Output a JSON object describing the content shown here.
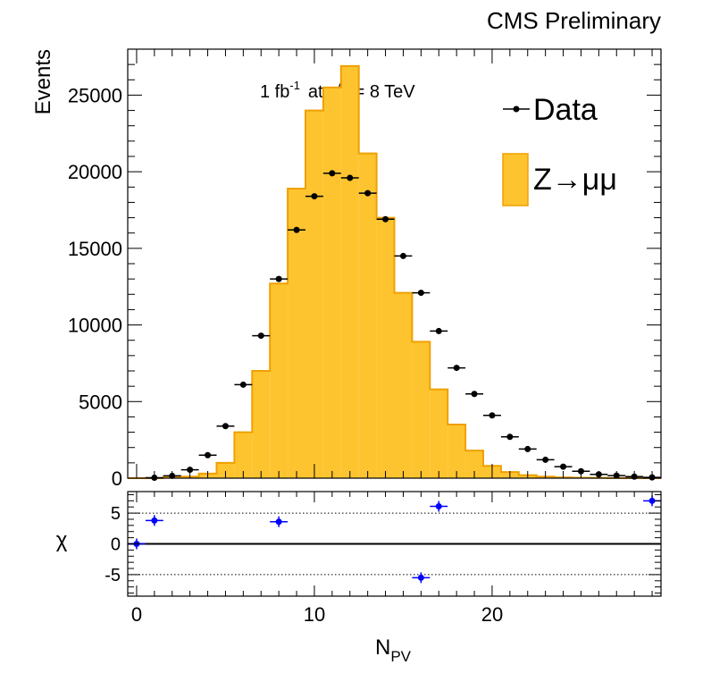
{
  "header": {
    "label": "CMS Preliminary"
  },
  "annotation": {
    "lumi": "1 fb",
    "lumi_exp": "-1",
    "at": "at",
    "sqrt": "√s",
    "energy": "= 8 TeV"
  },
  "legend": {
    "data_label": "Data",
    "mc_label": "Z→μμ",
    "position": "top-right"
  },
  "colors": {
    "mc_fill": "#fdc42f",
    "mc_line": "#f0a000",
    "data": "#000000",
    "chi": "#0000ff"
  },
  "chart_data": [
    {
      "type": "bar",
      "panel": "main",
      "xlabel_main": "N",
      "xlabel_sub": "PV",
      "ylabel": "Events",
      "xlim": [
        -0.5,
        29.5
      ],
      "ylim": [
        0,
        28000
      ],
      "y_ticks": [
        0,
        5000,
        10000,
        15000,
        20000,
        25000
      ],
      "y_tick_labels": [
        "0",
        "5000",
        "10000",
        "15000",
        "20000",
        "25000"
      ],
      "series": [
        {
          "name": "Z→μμ",
          "kind": "histogram",
          "x": [
            0,
            1,
            2,
            3,
            4,
            5,
            6,
            7,
            8,
            9,
            10,
            11,
            12,
            13,
            14,
            15,
            16,
            17,
            18,
            19,
            20,
            21,
            22,
            23,
            24,
            25,
            26,
            27,
            28,
            29
          ],
          "values": [
            0,
            0,
            80,
            100,
            300,
            1000,
            3000,
            7000,
            12700,
            18900,
            24000,
            25500,
            26900,
            21200,
            17000,
            12100,
            8900,
            5800,
            3500,
            1800,
            800,
            400,
            200,
            100,
            50,
            30,
            20,
            10,
            5,
            0
          ]
        },
        {
          "name": "Data",
          "kind": "points",
          "x": [
            1,
            2,
            3,
            4,
            5,
            6,
            7,
            8,
            9,
            10,
            11,
            12,
            13,
            14,
            15,
            16,
            17,
            18,
            19,
            20,
            21,
            22,
            23,
            24,
            25,
            26,
            27,
            28,
            29
          ],
          "values": [
            30,
            150,
            550,
            1500,
            3400,
            6100,
            9300,
            13000,
            16200,
            18400,
            19900,
            19600,
            18600,
            16900,
            14500,
            12100,
            9600,
            7200,
            5500,
            4100,
            2700,
            1900,
            1200,
            750,
            450,
            250,
            170,
            100,
            50
          ]
        }
      ]
    },
    {
      "type": "scatter",
      "panel": "ratio",
      "xlabel": "N_PV",
      "ylabel": "χ",
      "xlim": [
        -0.5,
        29.5
      ],
      "ylim": [
        -8.5,
        8.5
      ],
      "x_ticks": [
        0,
        10,
        20
      ],
      "x_tick_labels": [
        "0",
        "10",
        "20"
      ],
      "y_ticks": [
        -5,
        0,
        5
      ],
      "y_tick_labels": [
        "-5",
        "0",
        "5"
      ],
      "x": [
        0,
        1,
        8,
        16,
        17,
        29
      ],
      "values": [
        0,
        3.8,
        3.6,
        -5.5,
        6.1,
        7.0
      ]
    }
  ]
}
